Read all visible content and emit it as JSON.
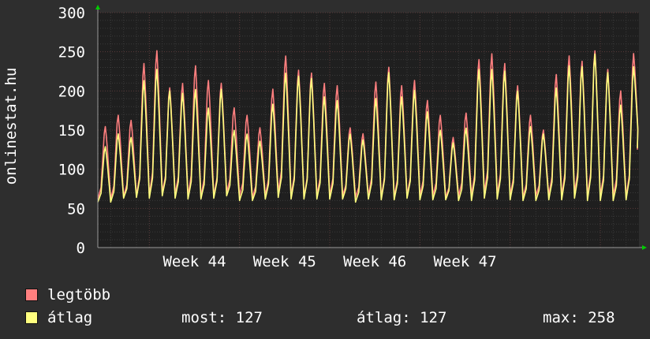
{
  "vertical_label": "onlinestat.hu",
  "colors": {
    "background": "#2e2e2e",
    "plot_background": "#1f1f1f",
    "grid_minor": "#3a3a3a",
    "grid_major": "#5a3a3a",
    "legtobb": "#ff7f7f",
    "atlag": "#ffff7f",
    "axis_arrow": "#00cc00"
  },
  "legend": {
    "legtobb_label": "legtöbb",
    "atlag_label": "átlag"
  },
  "stats": {
    "most": "most: 127",
    "atlag": "átlag: 127",
    "max": "max: 258"
  },
  "chart_data": {
    "type": "line",
    "title": "",
    "xlabel": "",
    "ylabel": "onlinestat.hu",
    "ylim": [
      0,
      300
    ],
    "yticks": [
      0,
      50,
      100,
      150,
      200,
      250,
      300
    ],
    "xtick_labels": [
      "Week 44",
      "Week 45",
      "Week 46",
      "Week 47"
    ],
    "grid": true,
    "x_unit": "day index (0 = first day shown)",
    "series": [
      {
        "name": "legtöbb",
        "color": "#ff7f7f",
        "daily_peaks": [
          160,
          175,
          168,
          245,
          262,
          212,
          218,
          242,
          222,
          218,
          185,
          175,
          158,
          210,
          255,
          236,
          232,
          218,
          215,
          158,
          150,
          220,
          240,
          215,
          222,
          195,
          175,
          145,
          178,
          250,
          258,
          245,
          215,
          175,
          155,
          230,
          255,
          248,
          262,
          237,
          208,
          255
        ],
        "daily_troughs": [
          62,
          65,
          66,
          67,
          70,
          68,
          66,
          64,
          66,
          70,
          66,
          64,
          66,
          70,
          66,
          64,
          66,
          66,
          66,
          64,
          66,
          64,
          64,
          66,
          66,
          66,
          64,
          66,
          66,
          70,
          68,
          66,
          64,
          66,
          66,
          66,
          70,
          66,
          66,
          66,
          64,
          125
        ]
      },
      {
        "name": "átlag",
        "color": "#ffff7f",
        "daily_peaks": [
          133,
          150,
          145,
          222,
          237,
          208,
          205,
          210,
          185,
          210,
          155,
          150,
          140,
          190,
          232,
          228,
          225,
          200,
          195,
          150,
          142,
          198,
          233,
          200,
          209,
          180,
          155,
          138,
          158,
          237,
          237,
          235,
          208,
          160,
          150,
          212,
          242,
          241,
          258,
          233,
          189,
          237
        ],
        "daily_troughs": [
          58,
          63,
          64,
          63,
          66,
          63,
          62,
          62,
          63,
          66,
          60,
          60,
          62,
          64,
          62,
          62,
          62,
          62,
          62,
          58,
          62,
          61,
          61,
          63,
          61,
          61,
          61,
          60,
          60,
          63,
          62,
          61,
          60,
          60,
          61,
          61,
          63,
          60,
          60,
          60,
          61,
          127
        ]
      }
    ]
  }
}
